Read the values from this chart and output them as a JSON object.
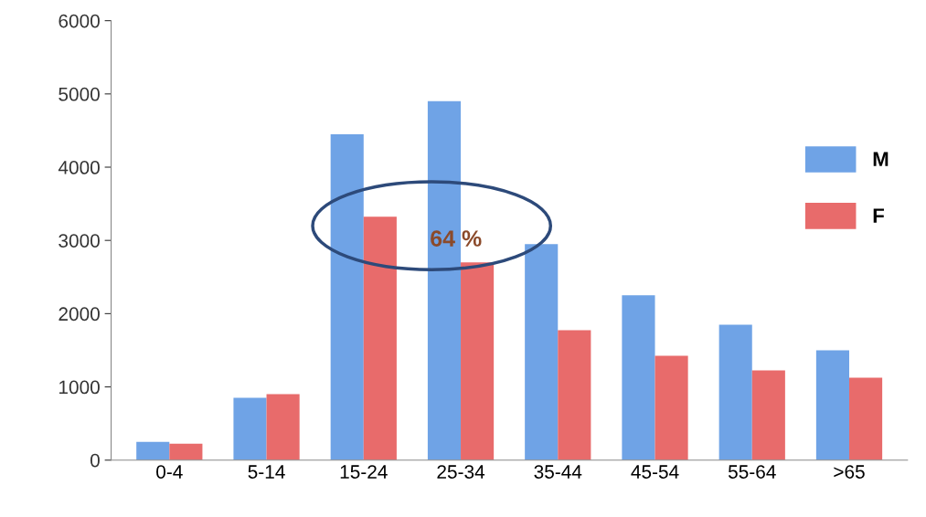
{
  "chart_data": {
    "type": "bar",
    "categories": [
      "0-4",
      "5-14",
      "15-24",
      "25-34",
      "35-44",
      "45-54",
      "55-64",
      ">65"
    ],
    "series": [
      {
        "name": "M",
        "color": "#6fa3e6",
        "values": [
          250,
          850,
          4450,
          4900,
          2950,
          2250,
          1850,
          1500
        ]
      },
      {
        "name": "F",
        "color": "#e86b6b",
        "values": [
          225,
          900,
          3325,
          2700,
          1775,
          1425,
          1225,
          1125
        ]
      }
    ],
    "ylim": [
      0,
      6000
    ],
    "yticks": [
      0,
      1000,
      2000,
      3000,
      4000,
      5000,
      6000
    ],
    "grid": false,
    "legend": "right",
    "annotations": [
      {
        "text": "64 %",
        "x": "25-34",
        "y": 3000
      }
    ]
  }
}
